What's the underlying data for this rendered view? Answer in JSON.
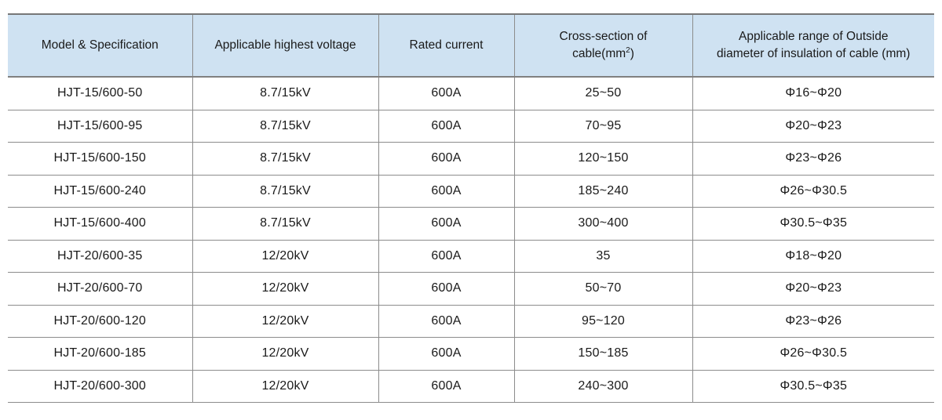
{
  "style": {
    "header_background": "#cfe2f2",
    "grid_border_color": "#808080",
    "text_color": "#1a1a1a",
    "page_background": "#ffffff"
  },
  "table": {
    "columns": [
      {
        "label": "Model & Specification"
      },
      {
        "label": "Applicable highest voltage"
      },
      {
        "label": "Rated current"
      },
      {
        "line1": "Cross-section of",
        "line2_pre": "cable(mm",
        "sup": "2",
        "line2_post": ")"
      },
      {
        "line1": "Applicable range of Outside",
        "line2": "diameter of insulation of cable (mm)"
      }
    ],
    "rows": [
      [
        "HJT-15/600-50",
        "8.7/15kV",
        "600A",
        "25~50",
        "Φ16~Φ20"
      ],
      [
        "HJT-15/600-95",
        "8.7/15kV",
        "600A",
        "70~95",
        "Φ20~Φ23"
      ],
      [
        "HJT-15/600-150",
        "8.7/15kV",
        "600A",
        "120~150",
        "Φ23~Φ26"
      ],
      [
        "HJT-15/600-240",
        "8.7/15kV",
        "600A",
        "185~240",
        "Φ26~Φ30.5"
      ],
      [
        "HJT-15/600-400",
        "8.7/15kV",
        "600A",
        "300~400",
        "Φ30.5~Φ35"
      ],
      [
        "HJT-20/600-35",
        "12/20kV",
        "600A",
        "35",
        "Φ18~Φ20"
      ],
      [
        "HJT-20/600-70",
        "12/20kV",
        "600A",
        "50~70",
        "Φ20~Φ23"
      ],
      [
        "HJT-20/600-120",
        "12/20kV",
        "600A",
        "95~120",
        "Φ23~Φ26"
      ],
      [
        "HJT-20/600-185",
        "12/20kV",
        "600A",
        "150~185",
        "Φ26~Φ30.5"
      ],
      [
        "HJT-20/600-300",
        "12/20kV",
        "600A",
        "240~300",
        "Φ30.5~Φ35"
      ]
    ]
  }
}
